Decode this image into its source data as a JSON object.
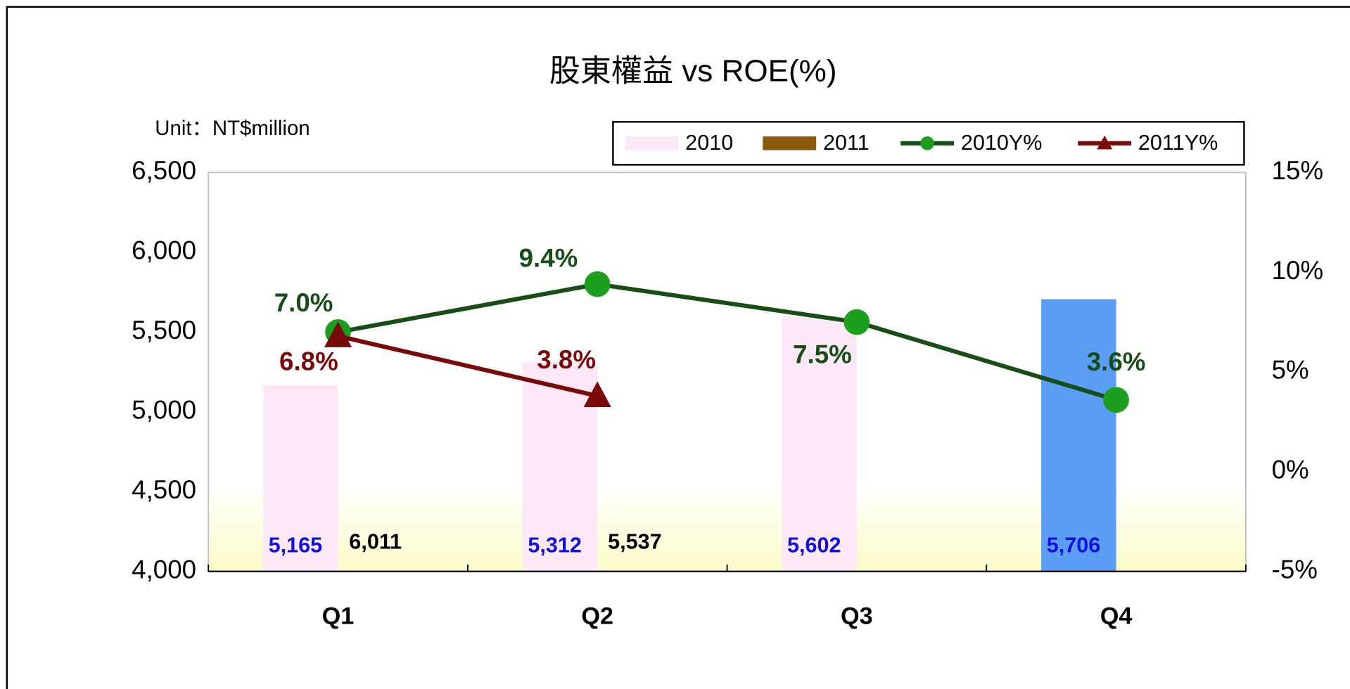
{
  "chart_data": {
    "type": "bar",
    "title": "股東權益 vs ROE(%)",
    "unit_label": "Unit：NT$million",
    "categories": [
      "Q1",
      "Q2",
      "Q3",
      "Q4"
    ],
    "series": [
      {
        "name": "2010",
        "type": "bar",
        "color": "#fde8f8",
        "colors": [
          "#fde8f8",
          "#fde8f8",
          "#fde8f8",
          "#5b9ef5"
        ],
        "values": [
          5165,
          5312,
          5602,
          5706
        ],
        "value_labels": [
          "5,165",
          "5,312",
          "5,602",
          "5,706"
        ],
        "label_color": "#1010e0"
      },
      {
        "name": "2011",
        "type": "bar",
        "color": "#8b5a0a",
        "values": [
          6011,
          5537,
          null,
          null
        ],
        "value_labels": [
          "6,011",
          "5,537",
          null,
          null
        ],
        "label_color": "#000000"
      },
      {
        "name": "2010Y%",
        "type": "line",
        "axis": "y2",
        "color": "#174d17",
        "marker_color": "#1e9e1e",
        "marker": "circle",
        "values": [
          7.0,
          9.4,
          7.5,
          3.6
        ],
        "value_labels": [
          "7.0%",
          "9.4%",
          "7.5%",
          "3.6%"
        ],
        "label_color": "#174d17"
      },
      {
        "name": "2011Y%",
        "type": "line",
        "axis": "y2",
        "color": "#7a0a0a",
        "marker_color": "#7a0a0a",
        "marker": "triangle",
        "values": [
          6.8,
          3.8,
          null,
          null
        ],
        "value_labels": [
          "6.8%",
          "3.8%",
          null,
          null
        ],
        "label_color": "#7a0a0a"
      }
    ],
    "ylim": [
      4000,
      6500
    ],
    "yticks": [
      {
        "value": 4000,
        "label": "4,000"
      },
      {
        "value": 4500,
        "label": "4,500"
      },
      {
        "value": 5000,
        "label": "5,000"
      },
      {
        "value": 5500,
        "label": "5,500"
      },
      {
        "value": 6000,
        "label": "6,000"
      },
      {
        "value": 6500,
        "label": "6,500"
      }
    ],
    "y2lim": [
      -5,
      15
    ],
    "y2ticks": [
      {
        "value": -5,
        "label": "-5%"
      },
      {
        "value": 0,
        "label": "0%"
      },
      {
        "value": 5,
        "label": "5%"
      },
      {
        "value": 10,
        "label": "10%"
      },
      {
        "value": 15,
        "label": "15%"
      }
    ],
    "legend": "top-right"
  }
}
